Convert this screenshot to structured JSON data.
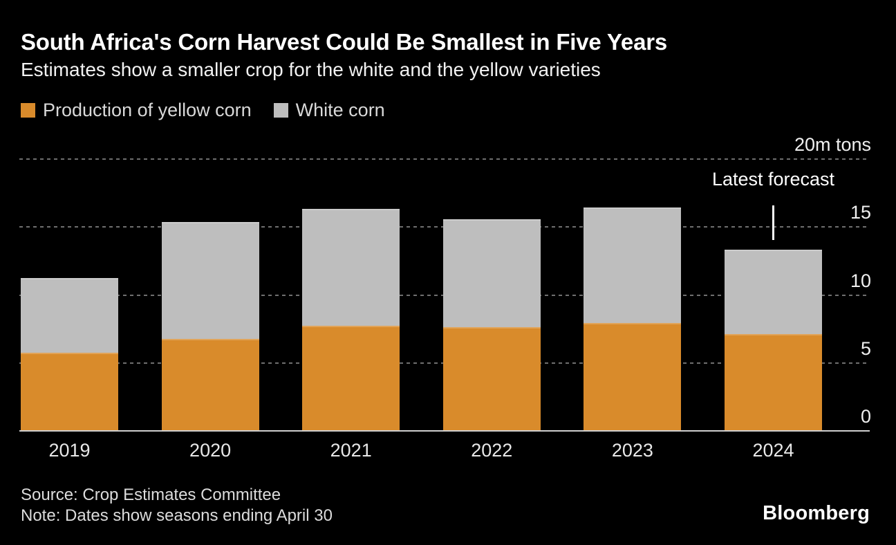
{
  "header": {
    "title": "South Africa's Corn Harvest Could Be Smallest in Five Years",
    "subtitle": "Estimates show a smaller crop for the white and the yellow varieties"
  },
  "colors": {
    "yellow_corn": "#D98B2B",
    "white_corn": "#BEBEBE",
    "background": "#000000",
    "gridline": "#6F6F6F",
    "baseline": "#CFCFCF"
  },
  "chart_data": {
    "type": "bar",
    "stacked": true,
    "title": "South Africa's Corn Harvest Could Be Smallest in Five Years",
    "subtitle": "Estimates show a smaller crop for the white and the yellow varieties",
    "categories": [
      "2019",
      "2020",
      "2021",
      "2022",
      "2023",
      "2024"
    ],
    "series": [
      {
        "name": "Production of yellow corn",
        "color": "#D98B2B",
        "values": [
          5.7,
          6.7,
          7.7,
          7.6,
          7.9,
          7.1
        ]
      },
      {
        "name": "White corn",
        "color": "#BEBEBE",
        "values": [
          5.5,
          8.6,
          8.6,
          7.9,
          8.5,
          6.2
        ]
      }
    ],
    "totals": [
      11.2,
      15.3,
      16.3,
      15.5,
      16.4,
      13.3
    ],
    "unit": "m tons",
    "ylim": [
      0,
      20
    ],
    "y_ticks": [
      {
        "value": 20,
        "label": "20m tons"
      },
      {
        "value": 15,
        "label": "15"
      },
      {
        "value": 10,
        "label": "10"
      },
      {
        "value": 5,
        "label": "5"
      },
      {
        "value": 0,
        "label": "0"
      }
    ],
    "grid": "horizontal-dashed",
    "legend_position": "top-left",
    "annotation": {
      "text": "Latest forecast",
      "category": "2024"
    }
  },
  "legend": {
    "items": [
      {
        "label": "Production of yellow corn",
        "color": "#D98B2B"
      },
      {
        "label": "White corn",
        "color": "#BEBEBE"
      }
    ]
  },
  "annotation": {
    "label": "Latest forecast"
  },
  "footer": {
    "source": "Source: Crop Estimates Committee",
    "note": "Note: Dates show seasons ending April 30",
    "brand": "Bloomberg"
  }
}
